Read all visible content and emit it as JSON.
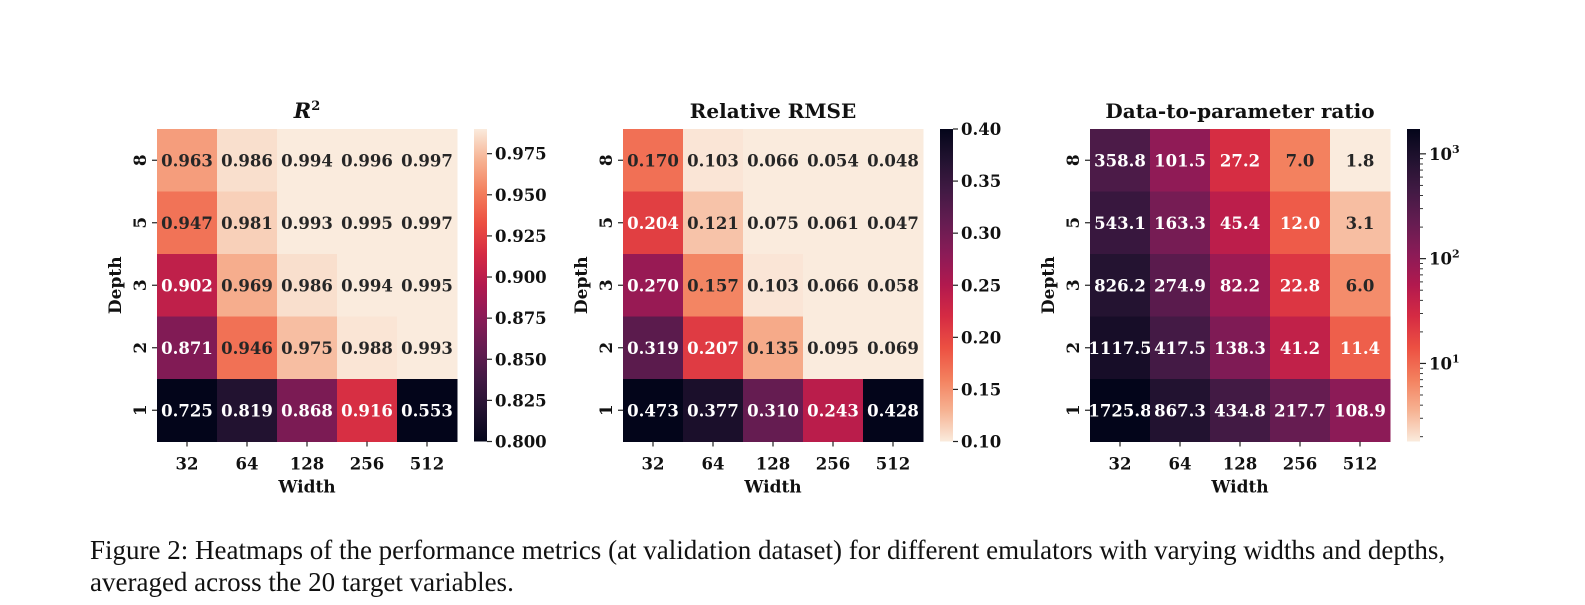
{
  "figure": {
    "caption": "Figure 2: Heatmaps of the performance metrics (at validation dataset) for different emulators with varying widths and depths, averaged across the 20 target variables."
  },
  "chart_data": [
    {
      "type": "heatmap",
      "title": "R²",
      "xlabel": "Width",
      "ylabel": "Depth",
      "x_ticks": [
        "32",
        "64",
        "128",
        "256",
        "512"
      ],
      "y_ticks": [
        "8",
        "5",
        "3",
        "2",
        "1"
      ],
      "values": [
        [
          0.963,
          0.986,
          0.994,
          0.996,
          0.997
        ],
        [
          0.947,
          0.981,
          0.993,
          0.995,
          0.997
        ],
        [
          0.902,
          0.969,
          0.986,
          0.994,
          0.995
        ],
        [
          0.871,
          0.946,
          0.975,
          0.988,
          0.993
        ],
        [
          0.725,
          0.819,
          0.868,
          0.916,
          0.553
        ]
      ],
      "labels": [
        [
          "0.963",
          "0.986",
          "0.994",
          "0.996",
          "0.997"
        ],
        [
          "0.947",
          "0.981",
          "0.993",
          "0.995",
          "0.997"
        ],
        [
          "0.902",
          "0.969",
          "0.986",
          "0.994",
          "0.995"
        ],
        [
          "0.871",
          "0.946",
          "0.975",
          "0.988",
          "0.993"
        ],
        [
          "0.725",
          "0.819",
          "0.868",
          "0.916",
          "0.553"
        ]
      ],
      "colorbar": {
        "scale": "linear",
        "range": [
          0.8,
          0.99
        ],
        "ticks": [
          0.8,
          0.825,
          0.85,
          0.875,
          0.9,
          0.925,
          0.95,
          0.975
        ],
        "tick_labels": [
          "0.800",
          "0.825",
          "0.850",
          "0.875",
          "0.900",
          "0.925",
          "0.950",
          "0.975"
        ],
        "colormap": "rocket"
      }
    },
    {
      "type": "heatmap",
      "title": "Relative RMSE",
      "xlabel": "Width",
      "ylabel": "Depth",
      "x_ticks": [
        "32",
        "64",
        "128",
        "256",
        "512"
      ],
      "y_ticks": [
        "8",
        "5",
        "3",
        "2",
        "1"
      ],
      "values": [
        [
          0.17,
          0.103,
          0.066,
          0.054,
          0.048
        ],
        [
          0.204,
          0.121,
          0.075,
          0.061,
          0.047
        ],
        [
          0.27,
          0.157,
          0.103,
          0.066,
          0.058
        ],
        [
          0.319,
          0.207,
          0.135,
          0.095,
          0.069
        ],
        [
          0.473,
          0.377,
          0.31,
          0.243,
          0.428
        ]
      ],
      "labels": [
        [
          "0.170",
          "0.103",
          "0.066",
          "0.054",
          "0.048"
        ],
        [
          "0.204",
          "0.121",
          "0.075",
          "0.061",
          "0.047"
        ],
        [
          "0.270",
          "0.157",
          "0.103",
          "0.066",
          "0.058"
        ],
        [
          "0.319",
          "0.207",
          "0.135",
          "0.095",
          "0.069"
        ],
        [
          "0.473",
          "0.377",
          "0.310",
          "0.243",
          "0.428"
        ]
      ],
      "colorbar": {
        "scale": "linear",
        "range": [
          0.1,
          0.4
        ],
        "ticks": [
          0.1,
          0.15,
          0.2,
          0.25,
          0.3,
          0.35,
          0.4
        ],
        "tick_labels": [
          "0.10",
          "0.15",
          "0.20",
          "0.25",
          "0.30",
          "0.35",
          "0.40"
        ],
        "colormap": "rocket_r"
      }
    },
    {
      "type": "heatmap",
      "title": "Data-to-parameter ratio",
      "xlabel": "Width",
      "ylabel": "Depth",
      "x_ticks": [
        "32",
        "64",
        "128",
        "256",
        "512"
      ],
      "y_ticks": [
        "8",
        "5",
        "3",
        "2",
        "1"
      ],
      "values": [
        [
          358.8,
          101.5,
          27.2,
          7.0,
          1.8
        ],
        [
          543.1,
          163.3,
          45.4,
          12.0,
          3.1
        ],
        [
          826.2,
          274.9,
          82.2,
          22.8,
          6.0
        ],
        [
          1117.5,
          417.5,
          138.3,
          41.2,
          11.4
        ],
        [
          1725.8,
          867.3,
          434.8,
          217.7,
          108.9
        ]
      ],
      "labels": [
        [
          "358.8",
          "101.5",
          "27.2",
          "7.0",
          "1.8"
        ],
        [
          "543.1",
          "163.3",
          "45.4",
          "12.0",
          "3.1"
        ],
        [
          "826.2",
          "274.9",
          "82.2",
          "22.8",
          "6.0"
        ],
        [
          "1117.5",
          "417.5",
          "138.3",
          "41.2",
          "11.4"
        ],
        [
          "1725.8",
          "867.3",
          "434.8",
          "217.7",
          "108.9"
        ]
      ],
      "colorbar": {
        "scale": "log",
        "range": [
          1.8,
          1725.8
        ],
        "major_ticks": [
          10,
          100,
          1000
        ],
        "major_tick_labels": [
          [
            "10",
            "1"
          ],
          [
            "10",
            "2"
          ],
          [
            "10",
            "3"
          ]
        ],
        "colormap": "rocket_r"
      }
    }
  ]
}
